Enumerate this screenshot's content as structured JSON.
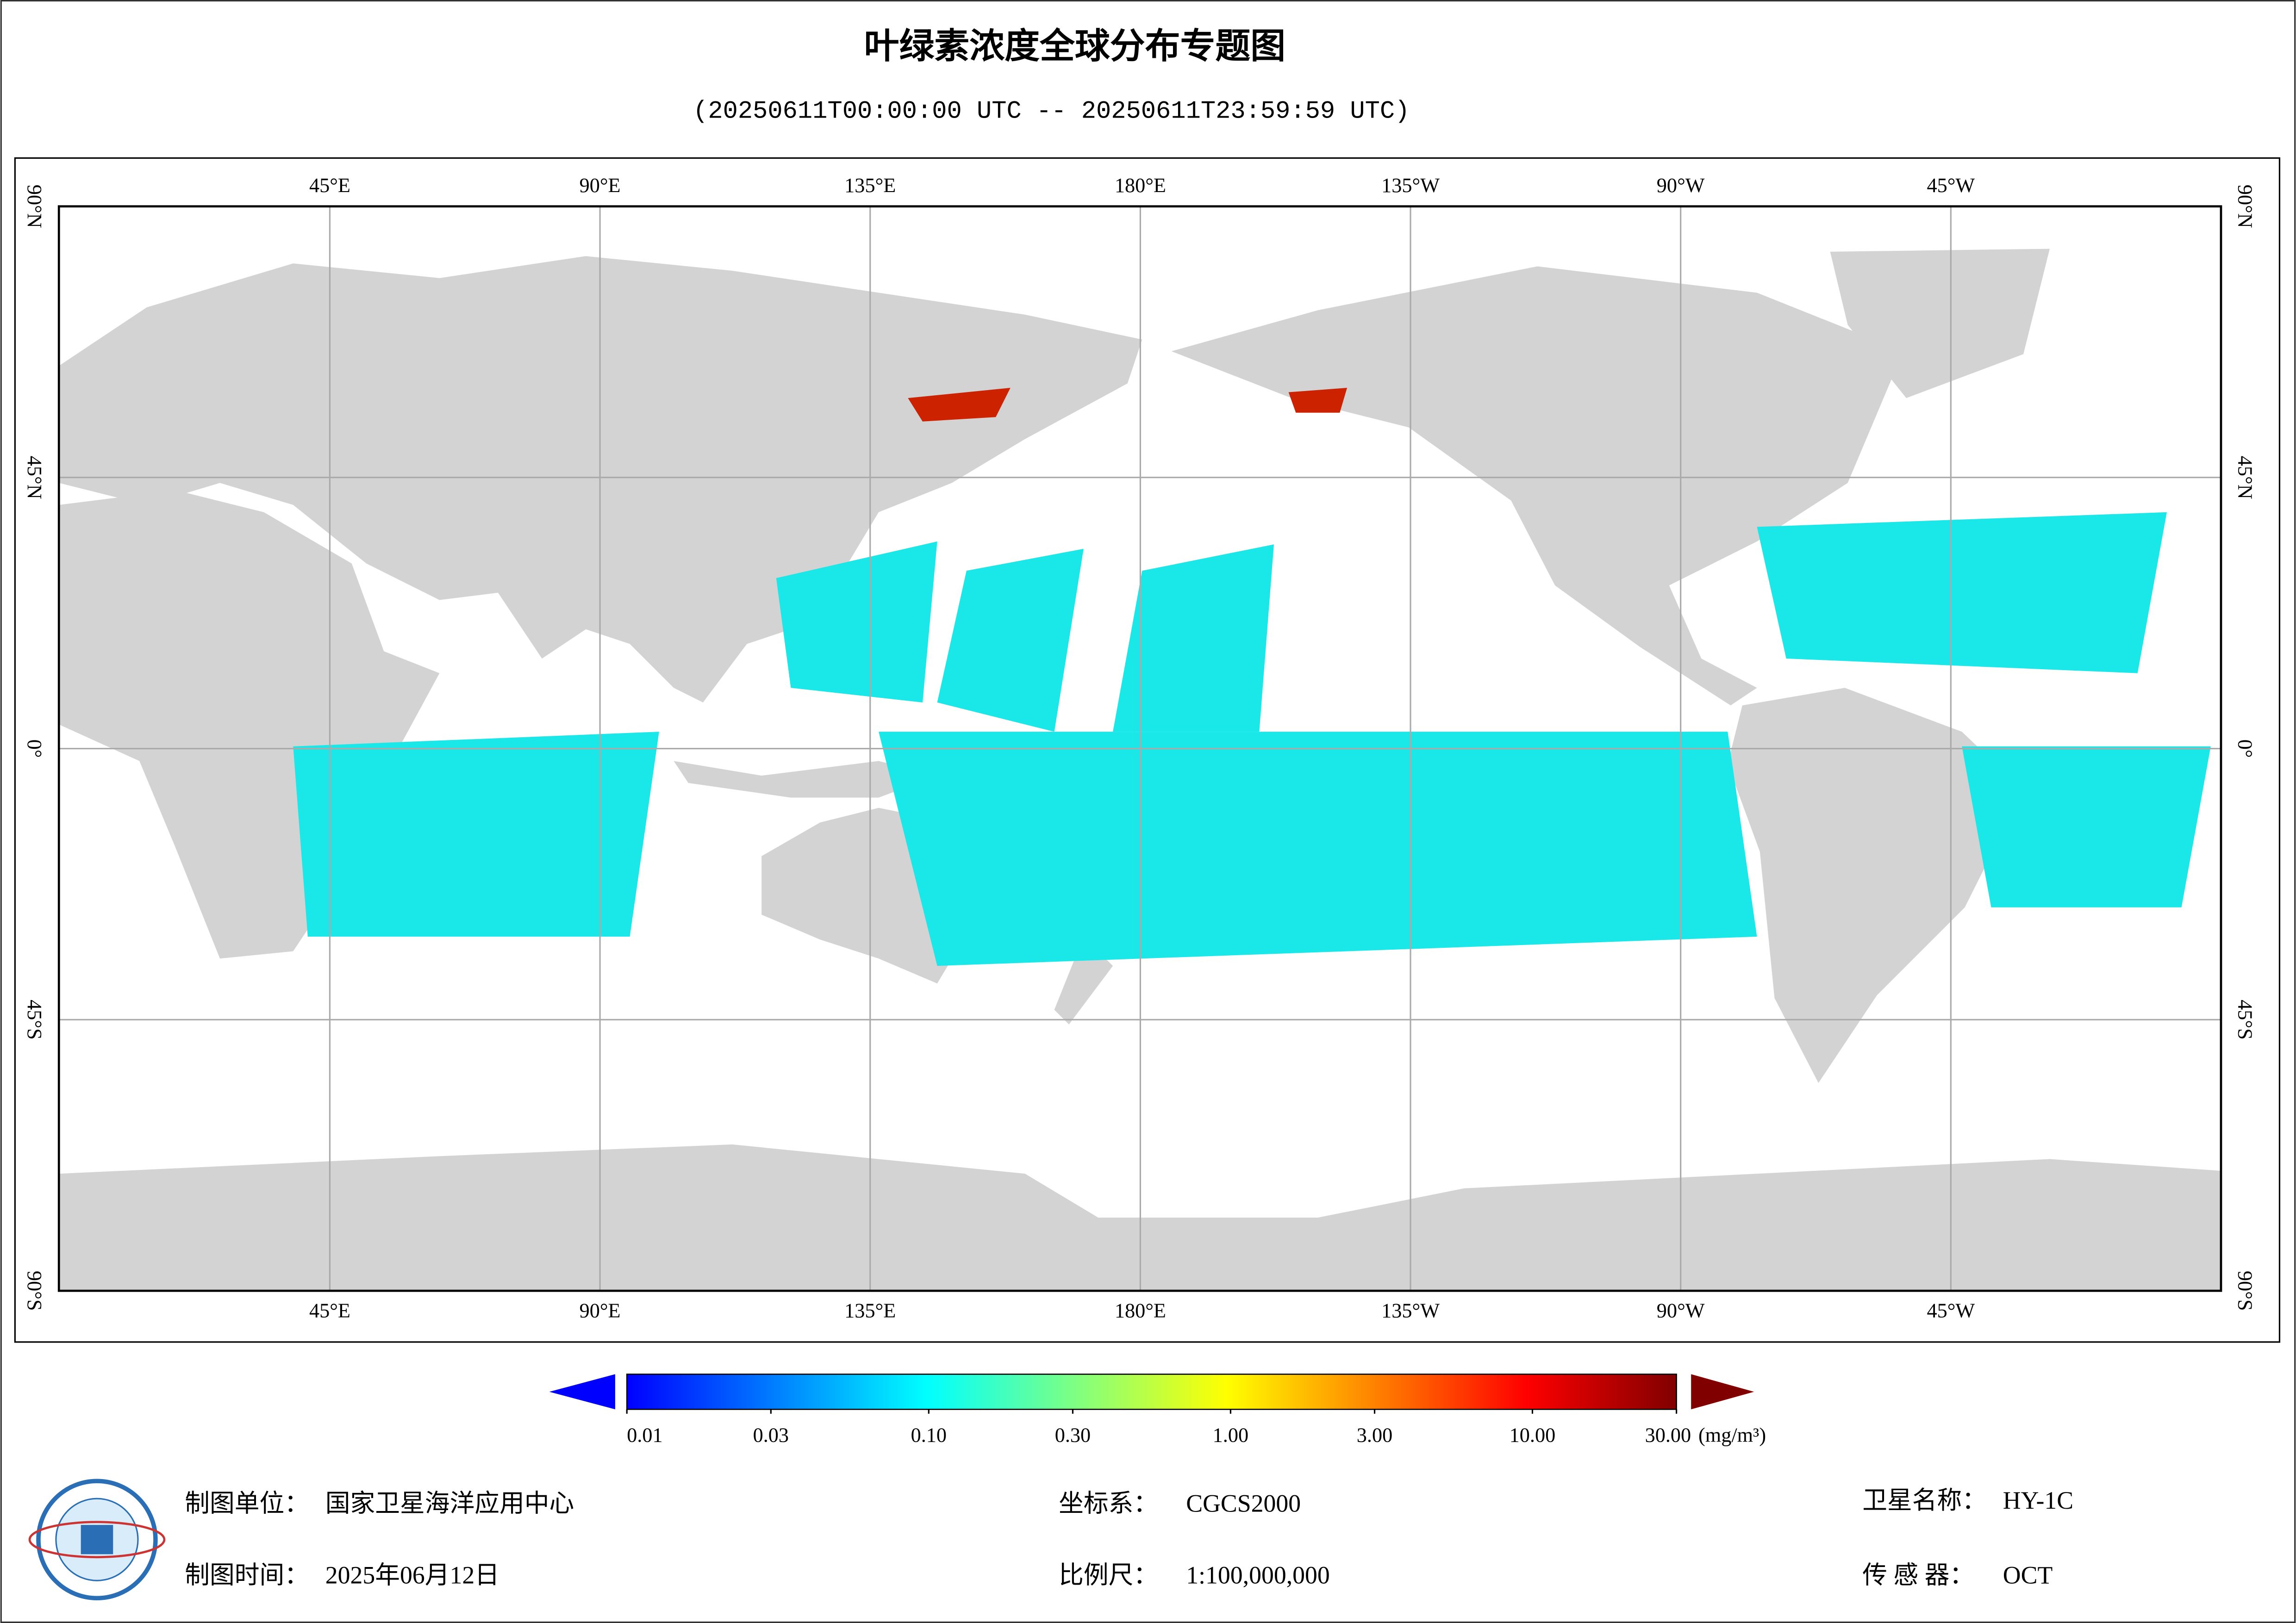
{
  "header": {
    "title": "叶绿素浓度全球分布专题图",
    "subtitle": "(20250611T00:00:00 UTC -- 20250611T23:59:59 UTC)"
  },
  "map": {
    "lon_labels": [
      "45°E",
      "90°E",
      "135°E",
      "180°E",
      "135°W",
      "90°W",
      "45°W"
    ],
    "lat_labels": [
      "90°N",
      "45°N",
      "0°",
      "45°S",
      "90°S"
    ]
  },
  "colorbar": {
    "scale": "log",
    "range": [
      0.01,
      30
    ],
    "colors": [
      "#0000ff",
      "#0080ff",
      "#00ffff",
      "#80ff80",
      "#ffff00",
      "#ff8000",
      "#ff0000",
      "#800000"
    ],
    "ticks": [
      0.01,
      0.03,
      {
        "value": 0.1,
        "label": "0.10"
      },
      {
        "value": 0.3,
        "label": "0.30"
      },
      {
        "value": 1,
        "label": "1.00"
      },
      {
        "value": 3,
        "label": "3.00"
      },
      {
        "value": 10,
        "label": "10.00"
      },
      {
        "value": 30,
        "label": "30.00"
      }
    ],
    "unit": "(mg/m³)"
  },
  "footer": {
    "unit_label": "制图单位：",
    "unit": "国家卫星海洋应用中心",
    "crs_label": "坐标系：",
    "crs": "CGCS2000",
    "sat_label": "卫星名称：",
    "sat": "HY-1C",
    "date_label": "制图时间：",
    "date": "2025年06月12日",
    "scale_label": "比例尺：",
    "scale": "1:100,000,000",
    "sensor_label": "传 感 器：",
    "sensor": "OCT"
  }
}
